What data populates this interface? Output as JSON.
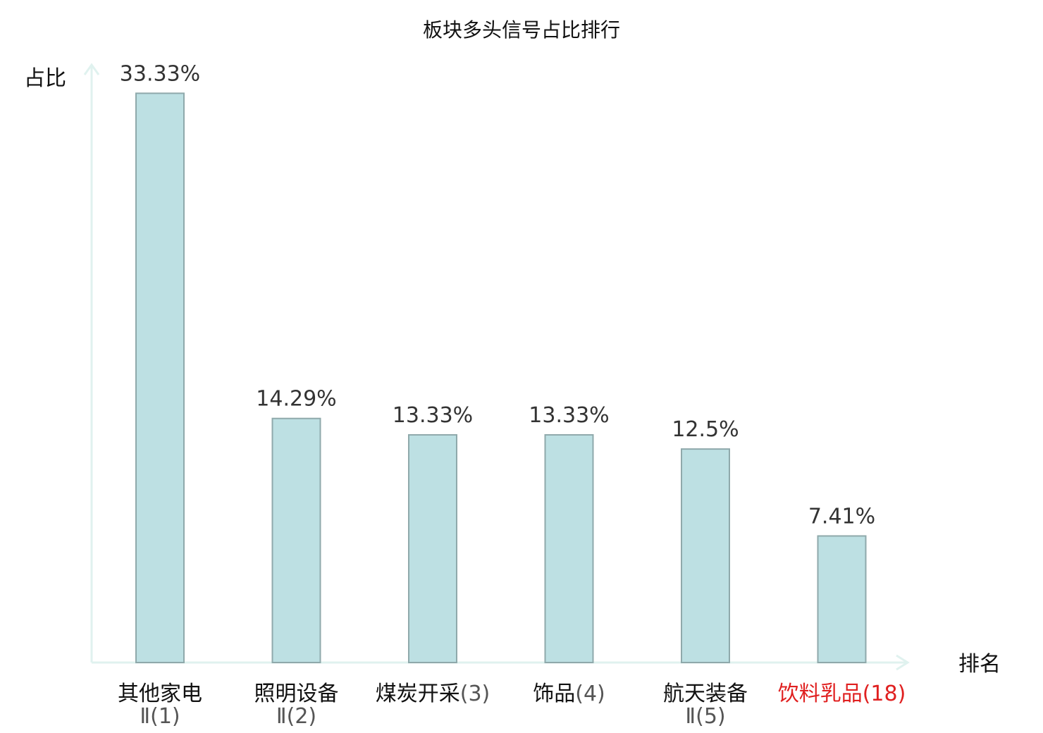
{
  "chart_data": {
    "type": "bar",
    "title": "板块多头信号占比排行",
    "xlabel": "排名",
    "ylabel": "占比",
    "ylim": [
      0,
      34.5
    ],
    "grid": false,
    "categories": [
      {
        "name": "其他家电",
        "suffix": "Ⅱ",
        "rank": "(1)",
        "highlight": false
      },
      {
        "name": "照明设备",
        "suffix": "Ⅱ",
        "rank": "(2)",
        "highlight": false
      },
      {
        "name": "煤炭开采",
        "suffix": "",
        "rank": "(3)",
        "highlight": false
      },
      {
        "name": "饰品",
        "suffix": "",
        "rank": "(4)",
        "highlight": false
      },
      {
        "name": "航天装备",
        "suffix": "Ⅱ",
        "rank": "(5)",
        "highlight": false
      },
      {
        "name": "饮料乳品",
        "suffix": "",
        "rank": "(18)",
        "highlight": true
      }
    ],
    "values": [
      33.33,
      14.29,
      13.33,
      13.33,
      12.5,
      7.41
    ],
    "value_labels": [
      "33.33%",
      "14.29%",
      "13.33%",
      "13.33%",
      "12.5%",
      "7.41%"
    ],
    "colors": {
      "bar_fill": "#bde0e3",
      "bar_stroke": "#8fa9ab",
      "axis": "#e0f2ef",
      "highlight_text": "#e02020",
      "normal_text": "#111111",
      "rank_text": "#555555"
    }
  }
}
